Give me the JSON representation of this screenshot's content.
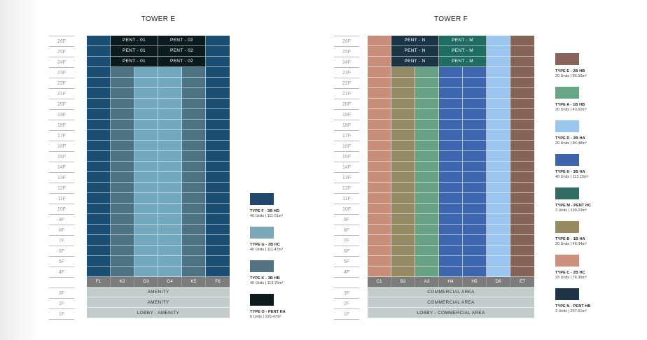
{
  "towers": [
    {
      "title": "TOWER E",
      "floors": [
        "26F",
        "25F",
        "24F",
        "23F",
        "22F",
        "21F",
        "20F",
        "19F",
        "18F",
        "17F",
        "16F",
        "15F",
        "14F",
        "13F",
        "12F",
        "11F",
        "10F",
        "9F",
        "8F",
        "7F",
        "6F",
        "5F",
        "4F"
      ],
      "columns": [
        "F1",
        "K2",
        "G3",
        "G4",
        "K5",
        "F6"
      ],
      "column_colors": [
        "#1b4e73",
        "#4d7283",
        "#72a8bd",
        "#72a8bd",
        "#4d7283",
        "#1b4e73"
      ],
      "penthouse": {
        "floors": 3,
        "span_start": 1,
        "units": [
          {
            "label": "PENT - 01",
            "color": "#0c1c1e"
          },
          {
            "label": "PENT - 02",
            "color": "#0c1c1e"
          }
        ]
      },
      "base_floors": [
        "3F",
        "2F",
        "1F"
      ],
      "base_rows": [
        "AMENITY",
        "AMENITY",
        "LOBBY - AMENITY"
      ],
      "legend": [
        {
          "color": "#23486e",
          "title": "TYPE F - 3B HD",
          "sub": "46 Units | 111.01m²"
        },
        {
          "color": "#7da8b9",
          "title": "TYPE G - 3B HC",
          "sub": "40 Units | 111.47m²"
        },
        {
          "color": "#537283",
          "title": "TYPE K - 3B HB",
          "sub": "40 Units | 113.76m²"
        },
        {
          "color": "#0c1b1d",
          "title": "TYPE O - PENT HA",
          "sub": "6 Units | 226.47m²"
        }
      ]
    },
    {
      "title": "TOWER F",
      "floors": [
        "26F",
        "25F",
        "24F",
        "23F",
        "22F",
        "21F",
        "20F",
        "19F",
        "18F",
        "17F",
        "16F",
        "15F",
        "14F",
        "13F",
        "12F",
        "11F",
        "10F",
        "9F",
        "8F",
        "7F",
        "6F",
        "5F",
        "4F"
      ],
      "columns": [
        "C1",
        "B2",
        "A3",
        "H4",
        "H5",
        "D6",
        "E7"
      ],
      "column_colors": [
        "#c98e7a",
        "#958a63",
        "#66a283",
        "#3d66ae",
        "#3d66ae",
        "#9cc6ef",
        "#856357"
      ],
      "penthouse": {
        "floors": 3,
        "span_start": 1,
        "units": [
          {
            "label": "PENT - N",
            "color": "#1b3446"
          },
          {
            "label": "PENT - M",
            "color": "#1f6c63"
          }
        ]
      },
      "base_floors": [
        "3F",
        "2F",
        "1F"
      ],
      "base_rows": [
        "COMMERCIAL AREA",
        "COMMERCIAL AREA",
        "LOBBY - COMMERCIAL AREA"
      ],
      "legend": [
        {
          "color": "#88635a",
          "title": "TYPE E - 2B HB",
          "sub": "20 Units | 86.33m²"
        },
        {
          "color": "#68a785",
          "title": "TYPE A - 1B HB",
          "sub": "20 Units | 43.50m²"
        },
        {
          "color": "#9dc6ef",
          "title": "TYPE D - 2B HA",
          "sub": "20 Units | 84.48m²"
        },
        {
          "color": "#3e64ae",
          "title": "TYPE H - 3B HA",
          "sub": "40 Units | 113.15m²"
        },
        {
          "color": "#306c64",
          "title": "TYPE M - PENT HC",
          "sub": "3 Units | 199.23m²"
        },
        {
          "color": "#978b62",
          "title": "TYPE B - 1B HA",
          "sub": "20 Units | 46.04m²"
        },
        {
          "color": "#cc917e",
          "title": "TYPE C - 2B HC",
          "sub": "23 Units | 76.39m²"
        },
        {
          "color": "#1f3446",
          "title": "TYPE N - PENT HB",
          "sub": "3 Units | 207.61m²"
        }
      ]
    }
  ]
}
